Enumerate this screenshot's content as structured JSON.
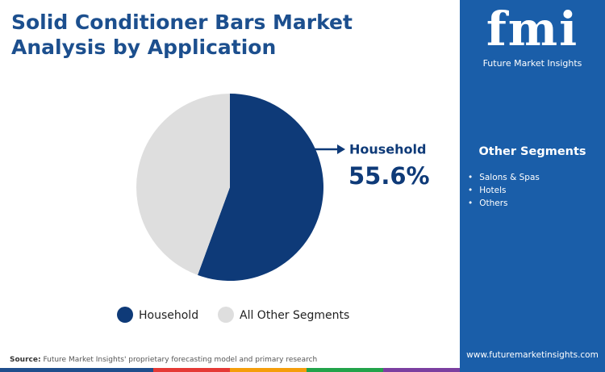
{
  "chart_data": {
    "type": "pie",
    "title": "Solid Conditioner Bars Market Analysis by Application",
    "categories": [
      "Household",
      "All Other Segments"
    ],
    "values": [
      55.6,
      44.4
    ],
    "value_labels": [
      "55.6%",
      null
    ],
    "colors": [
      "#0e3a78",
      "#dedede"
    ],
    "legend": "bottom"
  },
  "source": {
    "label": "Source:",
    "text": "Future Market Insights' proprietary forecasting model and primary research"
  },
  "brand": {
    "logo": "fmi",
    "name": "Future Market Insights",
    "website": "www.futuremarketinsights.com"
  },
  "side_panel": {
    "title": "Other Segments",
    "items": [
      "Salons & Spas",
      "Hotels",
      "Others"
    ]
  }
}
